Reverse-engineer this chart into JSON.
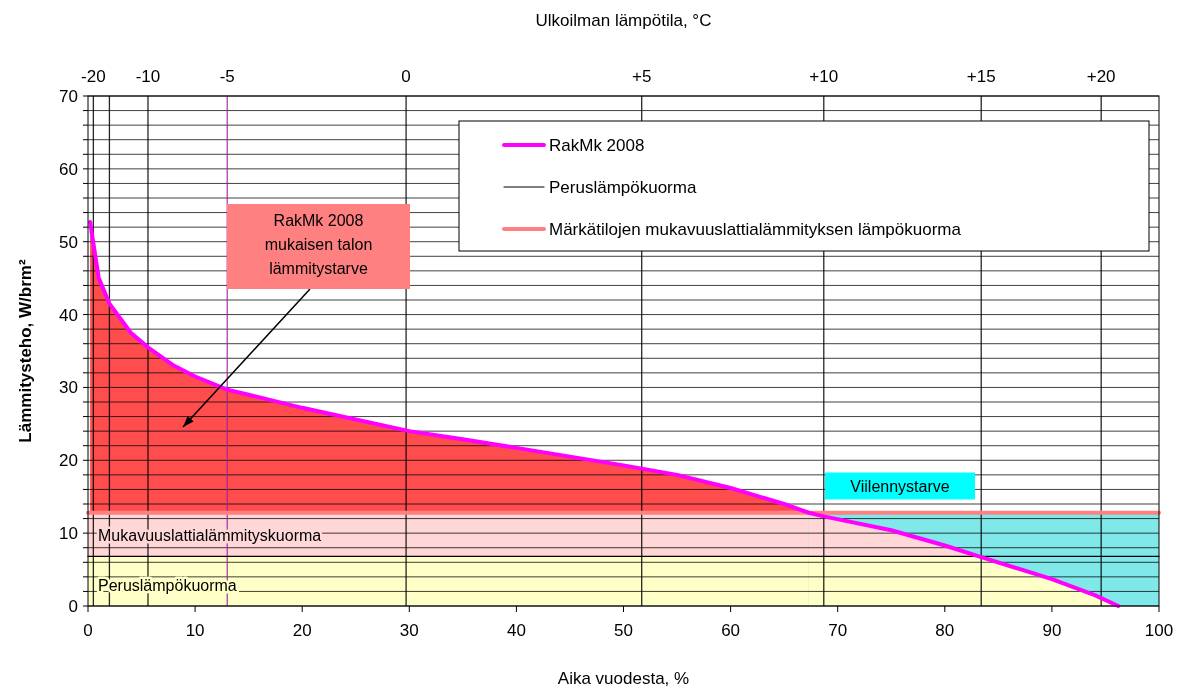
{
  "chart_data": {
    "type": "line",
    "xlabel": "Aika vuodesta, %",
    "ylabel": "Lämmitysteho, W/brm²",
    "xlim": [
      0,
      100
    ],
    "xticks": [
      0,
      10,
      20,
      30,
      40,
      50,
      60,
      70,
      80,
      90,
      100
    ],
    "ylim": [
      0,
      70
    ],
    "yticks": [
      0,
      {
        "value": 2,
        "label": null
      },
      {
        "value": 4,
        "label": null
      },
      {
        "value": 6,
        "label": null
      },
      {
        "value": 8,
        "label": null
      },
      10,
      {
        "value": 12,
        "label": null
      },
      {
        "value": 14,
        "label": null
      },
      {
        "value": 16,
        "label": null
      },
      {
        "value": 18,
        "label": null
      },
      20,
      {
        "value": 22,
        "label": null
      },
      {
        "value": 24,
        "label": null
      },
      {
        "value": 26,
        "label": null
      },
      {
        "value": 28,
        "label": null
      },
      30,
      {
        "value": 32,
        "label": null
      },
      {
        "value": 34,
        "label": null
      },
      {
        "value": 36,
        "label": null
      },
      {
        "value": 38,
        "label": null
      },
      40,
      {
        "value": 42,
        "label": null
      },
      {
        "value": 44,
        "label": null
      },
      {
        "value": 46,
        "label": null
      },
      {
        "value": 48,
        "label": null
      },
      50,
      {
        "value": 52,
        "label": null
      },
      {
        "value": 54,
        "label": null
      },
      {
        "value": 56,
        "label": null
      },
      {
        "value": 58,
        "label": null
      },
      60,
      {
        "value": 62,
        "label": null
      },
      {
        "value": 64,
        "label": null
      },
      {
        "value": 66,
        "label": null
      },
      {
        "value": 68,
        "label": null
      },
      70
    ],
    "grid": "y",
    "legend": "top right",
    "bands": [
      {
        "axis": "y",
        "from": 0,
        "to": 6.8,
        "label": "Peruslämpökuorma",
        "color": "#ffffc8"
      },
      {
        "axis": "y",
        "from": 6.8,
        "to": 12.8,
        "label": "Mukavuuslattialämmityskuorma",
        "color": "#ffd7d7"
      }
    ],
    "ref_lines": [
      {
        "axis": "x",
        "value": 0.5
      },
      {
        "axis": "x",
        "value": 2
      },
      {
        "axis": "x",
        "value": 5.6
      },
      {
        "axis": "x",
        "value": 13,
        "color": "#a020a0"
      },
      {
        "axis": "x",
        "value": 29.7
      },
      {
        "axis": "x",
        "value": 51.7
      },
      {
        "axis": "x",
        "value": 68.7
      },
      {
        "axis": "x",
        "value": 83.4
      },
      {
        "axis": "x",
        "value": 94.6
      }
    ],
    "series": [
      {
        "type": "area",
        "color": "#ff4d4d",
        "x": [
          0.2,
          1,
          2,
          4,
          5.6,
          8,
          10,
          13,
          15,
          20,
          25,
          30,
          35,
          40,
          45,
          50,
          55,
          60,
          65,
          67.3
        ],
        "values": [
          52.7,
          45,
          41.5,
          37.5,
          35.5,
          33,
          31.5,
          29.7,
          29,
          27.2,
          25.6,
          24,
          22.9,
          21.7,
          20.5,
          19.3,
          18,
          16.2,
          14,
          12.8
        ]
      },
      {
        "type": "area",
        "color": "#80e8e8",
        "x": [
          67.3,
          100
        ],
        "values": [
          12.8,
          12.8
        ]
      },
      {
        "type": "area",
        "color": "#ffd7d7",
        "x": [
          67.3,
          68.7,
          75,
          80,
          83.4,
          90,
          94,
          96.2
        ],
        "values": [
          12.8,
          12.3,
          10.4,
          8.3,
          6.7,
          3.7,
          1.5,
          0
        ]
      },
      {
        "type": "area",
        "color": "#ffffc8",
        "x": [
          67.3,
          83.4,
          90,
          94,
          96.2
        ],
        "values": [
          6.8,
          6.7,
          3.7,
          1.5,
          0
        ]
      },
      {
        "name": "Märkätilojen mukavuuslattialämmityksen lämpökuorma",
        "color": "#ff8080",
        "x": [
          0,
          100
        ],
        "values": [
          12.8,
          12.8
        ]
      },
      {
        "name": "Peruslämpökuorma",
        "color": "#000000",
        "x": [
          0,
          100
        ],
        "values": [
          6.8,
          6.8
        ]
      },
      {
        "name": "RakMk 2008",
        "color": "#ff00ff",
        "x": [
          0.2,
          1,
          2,
          4,
          5.6,
          8,
          10,
          13,
          15,
          20,
          25,
          30,
          35,
          40,
          45,
          50,
          55,
          60,
          65,
          67.3,
          68.7,
          75,
          80,
          83.4,
          90,
          94,
          96.2
        ],
        "values": [
          52.7,
          45,
          41.5,
          37.5,
          35.5,
          33,
          31.5,
          29.7,
          29,
          27.2,
          25.6,
          24,
          22.9,
          21.7,
          20.5,
          19.3,
          18,
          16.2,
          14,
          12.8,
          12.3,
          10.4,
          8.3,
          6.7,
          3.7,
          1.5,
          0
        ]
      }
    ],
    "annotations": [
      "Ulkoilman lämpötila, °C",
      "RakMk 2008 mukaisen talon lämmitystarve",
      "Viilennystarve",
      {
        "text": "-20",
        "x": 0.5,
        "y": 70
      },
      {
        "text": "-10",
        "x": 5.6,
        "y": 70
      },
      {
        "text": "-5",
        "x": 13,
        "y": 70
      },
      {
        "text": "0",
        "x": 29.7,
        "y": 70
      },
      {
        "text": "+5",
        "x": 51.7,
        "y": 70
      },
      {
        "text": "+10",
        "x": 68.7,
        "y": 70
      },
      {
        "text": "+15",
        "x": 83.4,
        "y": 70
      },
      {
        "text": "+20",
        "x": 94.6,
        "y": 70
      }
    ]
  }
}
